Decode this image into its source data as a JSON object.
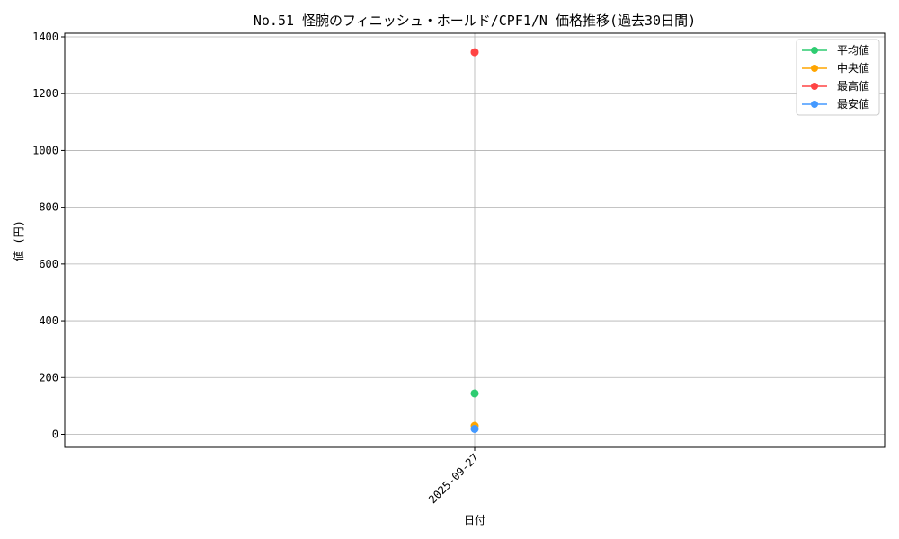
{
  "chart_data": {
    "type": "line",
    "title": "No.51 怪腕のフィニッシュ・ホールド/CPF1/N 価格推移(過去30日間)",
    "xlabel": "日付",
    "ylabel": "値 (円)",
    "categories": [
      "2025-09-27"
    ],
    "ylim": [
      -45,
      1410
    ],
    "yticks": [
      0,
      200,
      400,
      600,
      800,
      1000,
      1200,
      1400
    ],
    "grid": true,
    "legend_position": "top-right",
    "series": [
      {
        "name": "平均値",
        "values": [
          144
        ],
        "color": "#2ecc71"
      },
      {
        "name": "中央値",
        "values": [
          30
        ],
        "color": "#ffa500"
      },
      {
        "name": "最高値",
        "values": [
          1346
        ],
        "color": "#ff4444"
      },
      {
        "name": "最安値",
        "values": [
          19
        ],
        "color": "#4499ff"
      }
    ]
  }
}
